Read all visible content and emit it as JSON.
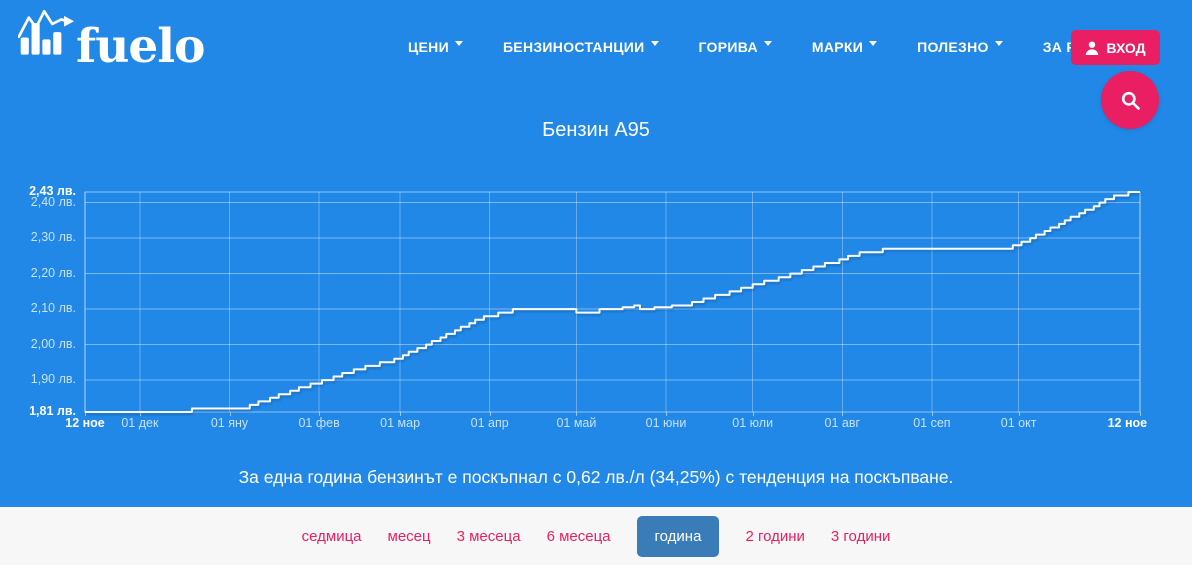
{
  "brand": {
    "logo_text": "fuelo"
  },
  "nav": {
    "items": [
      {
        "label": "ЦЕНИ"
      },
      {
        "label": "БЕНЗИНОСТАНЦИИ"
      },
      {
        "label": "ГОРИВА"
      },
      {
        "label": "МАРКИ"
      },
      {
        "label": "ПОЛЕЗНО"
      },
      {
        "label": "ЗА FUELO"
      }
    ],
    "login_label": "ВХОД"
  },
  "page": {
    "title": "Бензин А95",
    "summary": "За една година бензинът е поскъпнал с 0,62 лв./л (34,25%) с тенденция на поскъпване."
  },
  "periods": {
    "items": [
      {
        "label": "седмица",
        "active": false
      },
      {
        "label": "месец",
        "active": false
      },
      {
        "label": "3 месеца",
        "active": false
      },
      {
        "label": "6 месеца",
        "active": false
      },
      {
        "label": "година",
        "active": true
      },
      {
        "label": "2 години",
        "active": false
      },
      {
        "label": "3 години",
        "active": false
      }
    ]
  },
  "colors": {
    "background": "#2188e8",
    "accent_pink": "#e91e63",
    "active_button_blue": "#3a7cb8",
    "footer_background": "#f7f7f7",
    "chart_line": "#ffffff"
  },
  "chart_data": {
    "type": "line",
    "title": "Бензин А95",
    "unit": "лв.",
    "ylim": [
      1.81,
      2.43
    ],
    "x_range_days": 365,
    "grid": true,
    "legend_position": "none",
    "y_ticks": [
      {
        "label": "2,43 лв.",
        "value": 2.43,
        "bold": true
      },
      {
        "label": "2,40 лв.",
        "value": 2.4,
        "bold": false
      },
      {
        "label": "2,30 лв.",
        "value": 2.3,
        "bold": false
      },
      {
        "label": "2,20 лв.",
        "value": 2.2,
        "bold": false
      },
      {
        "label": "2,10 лв.",
        "value": 2.1,
        "bold": false
      },
      {
        "label": "2,00 лв.",
        "value": 2.0,
        "bold": false
      },
      {
        "label": "1,90 лв.",
        "value": 1.9,
        "bold": false
      },
      {
        "label": "1,81 лв.",
        "value": 1.81,
        "bold": true
      }
    ],
    "x_ticks": [
      {
        "label": "12 ное",
        "day": 0,
        "bold": true
      },
      {
        "label": "01 дек",
        "day": 19,
        "bold": false
      },
      {
        "label": "01 яну",
        "day": 50,
        "bold": false
      },
      {
        "label": "01 фев",
        "day": 81,
        "bold": false
      },
      {
        "label": "01 мар",
        "day": 109,
        "bold": false
      },
      {
        "label": "01 апр",
        "day": 140,
        "bold": false
      },
      {
        "label": "01 май",
        "day": 170,
        "bold": false
      },
      {
        "label": "01 юни",
        "day": 201,
        "bold": false
      },
      {
        "label": "01 юли",
        "day": 231,
        "bold": false
      },
      {
        "label": "01 авг",
        "day": 262,
        "bold": false
      },
      {
        "label": "01 сеп",
        "day": 293,
        "bold": false
      },
      {
        "label": "01 окт",
        "day": 323,
        "bold": false
      },
      {
        "label": "12 ное",
        "day": 365,
        "bold": true
      }
    ],
    "series": [
      {
        "name": "Бензин А95",
        "start_value": 1.81,
        "end_value": 2.43,
        "points": [
          [
            0,
            1.81
          ],
          [
            37,
            1.81
          ],
          [
            37,
            1.82
          ],
          [
            54,
            1.82
          ],
          [
            57,
            1.83
          ],
          [
            60,
            1.84
          ],
          [
            64,
            1.85
          ],
          [
            67,
            1.86
          ],
          [
            71,
            1.87
          ],
          [
            74,
            1.88
          ],
          [
            78,
            1.89
          ],
          [
            82,
            1.9
          ],
          [
            86,
            1.91
          ],
          [
            89,
            1.92
          ],
          [
            93,
            1.93
          ],
          [
            97,
            1.94
          ],
          [
            102,
            1.95
          ],
          [
            107,
            1.96
          ],
          [
            110,
            1.97
          ],
          [
            112,
            1.98
          ],
          [
            115,
            1.99
          ],
          [
            118,
            2.0
          ],
          [
            120,
            2.01
          ],
          [
            123,
            2.02
          ],
          [
            125,
            2.03
          ],
          [
            128,
            2.04
          ],
          [
            130,
            2.05
          ],
          [
            133,
            2.06
          ],
          [
            135,
            2.07
          ],
          [
            138,
            2.08
          ],
          [
            143,
            2.09
          ],
          [
            148,
            2.1
          ],
          [
            170,
            2.09
          ],
          [
            178,
            2.1
          ],
          [
            186,
            2.105
          ],
          [
            190,
            2.11
          ],
          [
            192,
            2.1
          ],
          [
            197,
            2.105
          ],
          [
            203,
            2.11
          ],
          [
            210,
            2.12
          ],
          [
            214,
            2.13
          ],
          [
            218,
            2.14
          ],
          [
            223,
            2.15
          ],
          [
            227,
            2.16
          ],
          [
            231,
            2.17
          ],
          [
            235,
            2.18
          ],
          [
            240,
            2.19
          ],
          [
            244,
            2.2
          ],
          [
            248,
            2.21
          ],
          [
            252,
            2.22
          ],
          [
            256,
            2.23
          ],
          [
            261,
            2.24
          ],
          [
            264,
            2.25
          ],
          [
            268,
            2.26
          ],
          [
            276,
            2.27
          ],
          [
            320,
            2.27
          ],
          [
            321,
            2.28
          ],
          [
            324,
            2.29
          ],
          [
            327,
            2.3
          ],
          [
            329,
            2.31
          ],
          [
            332,
            2.32
          ],
          [
            334,
            2.33
          ],
          [
            337,
            2.34
          ],
          [
            339,
            2.35
          ],
          [
            341,
            2.36
          ],
          [
            344,
            2.37
          ],
          [
            346,
            2.38
          ],
          [
            349,
            2.39
          ],
          [
            351,
            2.4
          ],
          [
            353,
            2.41
          ],
          [
            356,
            2.42
          ],
          [
            359,
            2.42
          ],
          [
            361,
            2.43
          ],
          [
            365,
            2.43
          ]
        ]
      }
    ]
  }
}
